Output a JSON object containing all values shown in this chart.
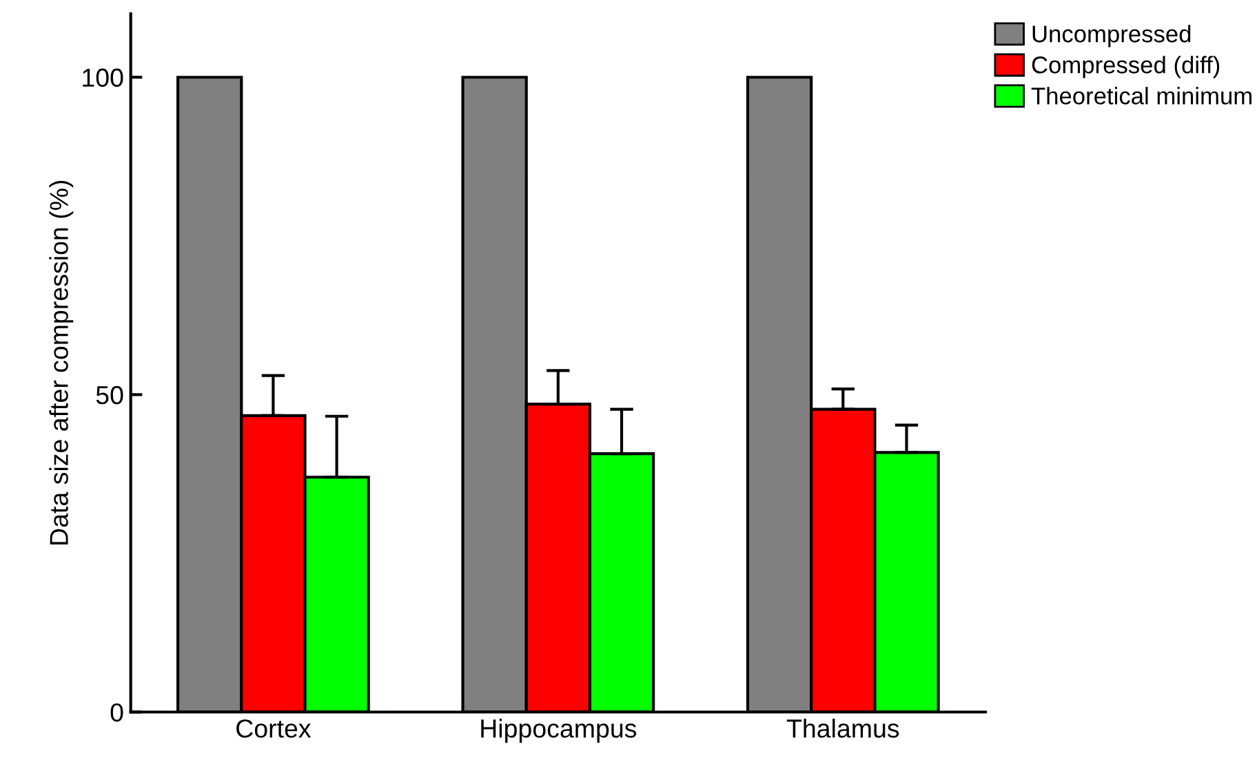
{
  "chart_data": {
    "type": "bar",
    "ylabel": "Data size after compression (%)",
    "categories": [
      "Cortex",
      "Hippocampus",
      "Thalamus"
    ],
    "series": [
      {
        "name": "Uncompressed",
        "color": "#808080",
        "values": [
          100,
          100,
          100
        ]
      },
      {
        "name": "Compressed (diff)",
        "color": "#ff0000",
        "values": [
          46.7,
          48.5,
          47.7
        ],
        "errors": [
          [
            46.7,
            53.0
          ],
          [
            48.5,
            53.8
          ],
          [
            47.7,
            50.9
          ]
        ]
      },
      {
        "name": "Theoretical minimum",
        "color": "#00ff00",
        "values": [
          37.0,
          40.7,
          40.9
        ],
        "errors": [
          [
            37.0,
            46.6
          ],
          [
            40.7,
            47.7
          ],
          [
            40.9,
            45.2
          ]
        ]
      }
    ],
    "ylim": [
      0,
      110
    ],
    "yticks": [
      0,
      50,
      100
    ],
    "grid": false,
    "legend": "top right"
  }
}
